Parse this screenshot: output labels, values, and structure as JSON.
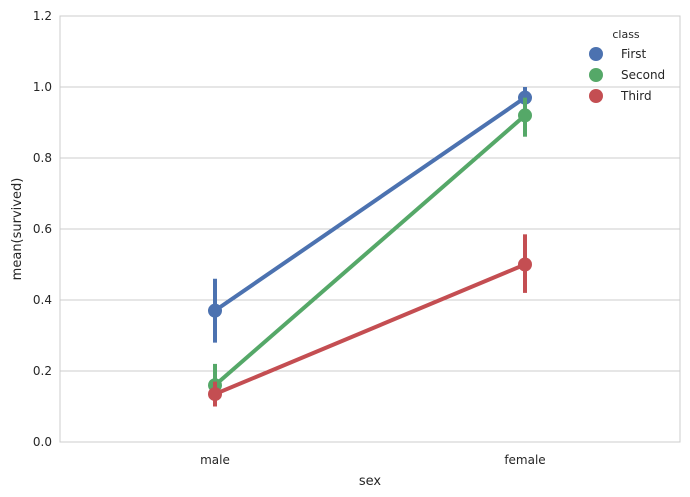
{
  "chart_data": {
    "type": "line",
    "title": "",
    "xlabel": "sex",
    "ylabel": "mean(survived)",
    "categories": [
      "male",
      "female"
    ],
    "ylim": [
      0.0,
      1.2
    ],
    "yticks": [
      "0.0",
      "0.2",
      "0.4",
      "0.6",
      "0.8",
      "1.0",
      "1.2"
    ],
    "grid": true,
    "legend": {
      "title": "class",
      "placement": "top-right"
    },
    "series": [
      {
        "name": "First",
        "color": "#4c72b0",
        "values": [
          0.37,
          0.97
        ],
        "ci_low": [
          0.28,
          0.93
        ],
        "ci_high": [
          0.46,
          1.0
        ]
      },
      {
        "name": "Second",
        "color": "#55a868",
        "values": [
          0.16,
          0.92
        ],
        "ci_low": [
          0.1,
          0.86
        ],
        "ci_high": [
          0.22,
          0.97
        ]
      },
      {
        "name": "Third",
        "color": "#c44e52",
        "values": [
          0.135,
          0.5
        ],
        "ci_low": [
          0.1,
          0.42
        ],
        "ci_high": [
          0.17,
          0.585
        ]
      }
    ]
  }
}
